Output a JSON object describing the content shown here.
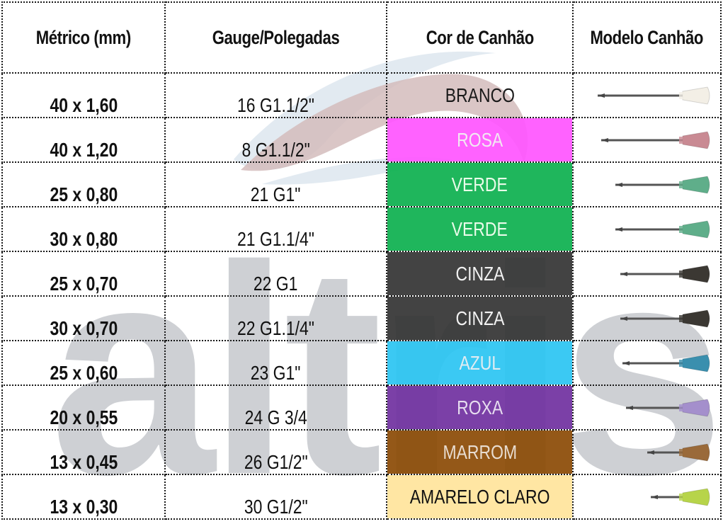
{
  "table": {
    "headers": [
      "Métrico (mm)",
      "Gauge/Polegadas",
      "Cor de Canhão",
      "Modelo Canhão"
    ],
    "rows": [
      {
        "metric": "40 x 1,60",
        "gauge": "16 G1.1/2\"",
        "color_name": "BRANCO",
        "bg": "#ffffff",
        "text_color": "#1a1a1a",
        "hub_color": "#f3efe6",
        "needle_len": 120
      },
      {
        "metric": "40 x 1,20",
        "gauge": "8 G1.1/2\"",
        "color_name": "ROSA",
        "bg": "#ff55ff",
        "text_color": "#f2e8f2",
        "hub_color": "#c98a93",
        "needle_len": 115
      },
      {
        "metric": "25 x 0,80",
        "gauge": "21 G1\"",
        "color_name": "VERDE",
        "bg": "#0cb04e",
        "text_color": "#e9fbe9",
        "hub_color": "#5fae8a",
        "needle_len": 95
      },
      {
        "metric": "30 x 0,80",
        "gauge": "21 G1.1/4\"",
        "color_name": "VERDE",
        "bg": "#0cb04e",
        "text_color": "#e9fbe9",
        "hub_color": "#5fae8a",
        "needle_len": 95
      },
      {
        "metric": "25 x 0,70",
        "gauge": "22 G1",
        "color_name": "CINZA",
        "bg": "#333333",
        "text_color": "#f2f2f2",
        "hub_color": "#3b3833",
        "needle_len": 88
      },
      {
        "metric": "30 x 0,70",
        "gauge": "22 G1.1/4\"",
        "color_name": "CINZA",
        "bg": "#333333",
        "text_color": "#f2f2f2",
        "hub_color": "#3b3833",
        "needle_len": 88
      },
      {
        "metric": "25 x 0,60",
        "gauge": "23 G1\"",
        "color_name": "AZUL",
        "bg": "#2ac4f2",
        "text_color": "#e0ecf2",
        "hub_color": "#3a8fae",
        "needle_len": 85
      },
      {
        "metric": "20 x 0,55",
        "gauge": "24 G 3/4",
        "color_name": "ROXA",
        "bg": "#7030a0",
        "text_color": "#e6dcef",
        "hub_color": "#a48fcc",
        "needle_len": 80
      },
      {
        "metric": "13 x 0,45",
        "gauge": "26 G1/2\"",
        "color_name": "MARROM",
        "bg": "#8b4a04",
        "text_color": "#e8dcd0",
        "hub_color": "#9a6a3a",
        "needle_len": 50
      },
      {
        "metric": "13 x 0,30",
        "gauge": "30 G1/2\"",
        "color_name": "AMARELO CLARO",
        "bg": "#ffe49b",
        "text_color": "#111111",
        "hub_color": "#b7d44a",
        "needle_len": 45
      }
    ]
  },
  "watermark": {
    "text": "altris",
    "color": "#c9ccd0"
  }
}
